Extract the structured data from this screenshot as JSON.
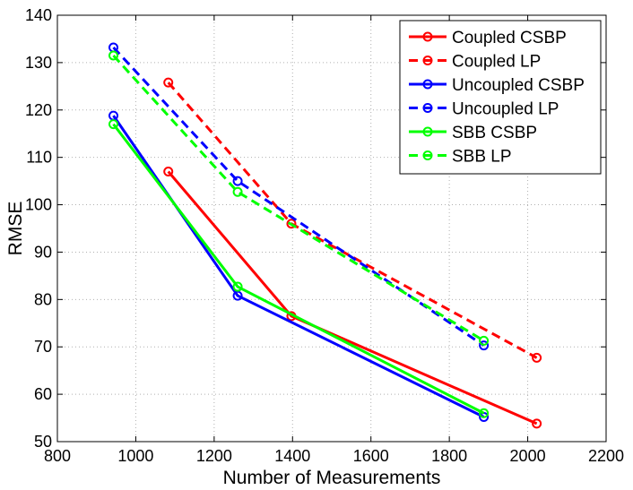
{
  "chart_data": {
    "type": "line",
    "title": "",
    "xlabel": "Number of Measurements",
    "ylabel": "RMSE",
    "xlim": [
      800,
      2200
    ],
    "ylim": [
      50,
      140
    ],
    "xticks": [
      800,
      1000,
      1200,
      1400,
      1600,
      1800,
      2000,
      2200
    ],
    "yticks": [
      50,
      60,
      70,
      80,
      90,
      100,
      110,
      120,
      130,
      140
    ],
    "grid": true,
    "legend_position": "top-right",
    "series": [
      {
        "name": "Coupled CSBP",
        "color": "#ff0000",
        "dash": "solid",
        "x": [
          1083,
          1397,
          2023
        ],
        "y": [
          107,
          76.5,
          53.8
        ]
      },
      {
        "name": "Coupled LP",
        "color": "#ff0000",
        "dash": "dashed",
        "x": [
          1083,
          1397,
          2023
        ],
        "y": [
          125.8,
          96,
          67.7
        ]
      },
      {
        "name": "Uncoupled CSBP",
        "color": "#0000ff",
        "dash": "solid",
        "x": [
          943,
          1260,
          1888
        ],
        "y": [
          118.8,
          80.8,
          55.2
        ]
      },
      {
        "name": "Uncoupled LP",
        "color": "#0000ff",
        "dash": "dashed",
        "x": [
          943,
          1260,
          1888
        ],
        "y": [
          133.2,
          105,
          70.3
        ]
      },
      {
        "name": "SBB CSBP",
        "color": "#00ff00",
        "dash": "solid",
        "x": [
          943,
          1260,
          1888
        ],
        "y": [
          117,
          82.7,
          56
        ]
      },
      {
        "name": "SBB LP",
        "color": "#00ff00",
        "dash": "dashed",
        "x": [
          943,
          1260,
          1888
        ],
        "y": [
          131.5,
          102.7,
          71.3
        ]
      }
    ]
  }
}
